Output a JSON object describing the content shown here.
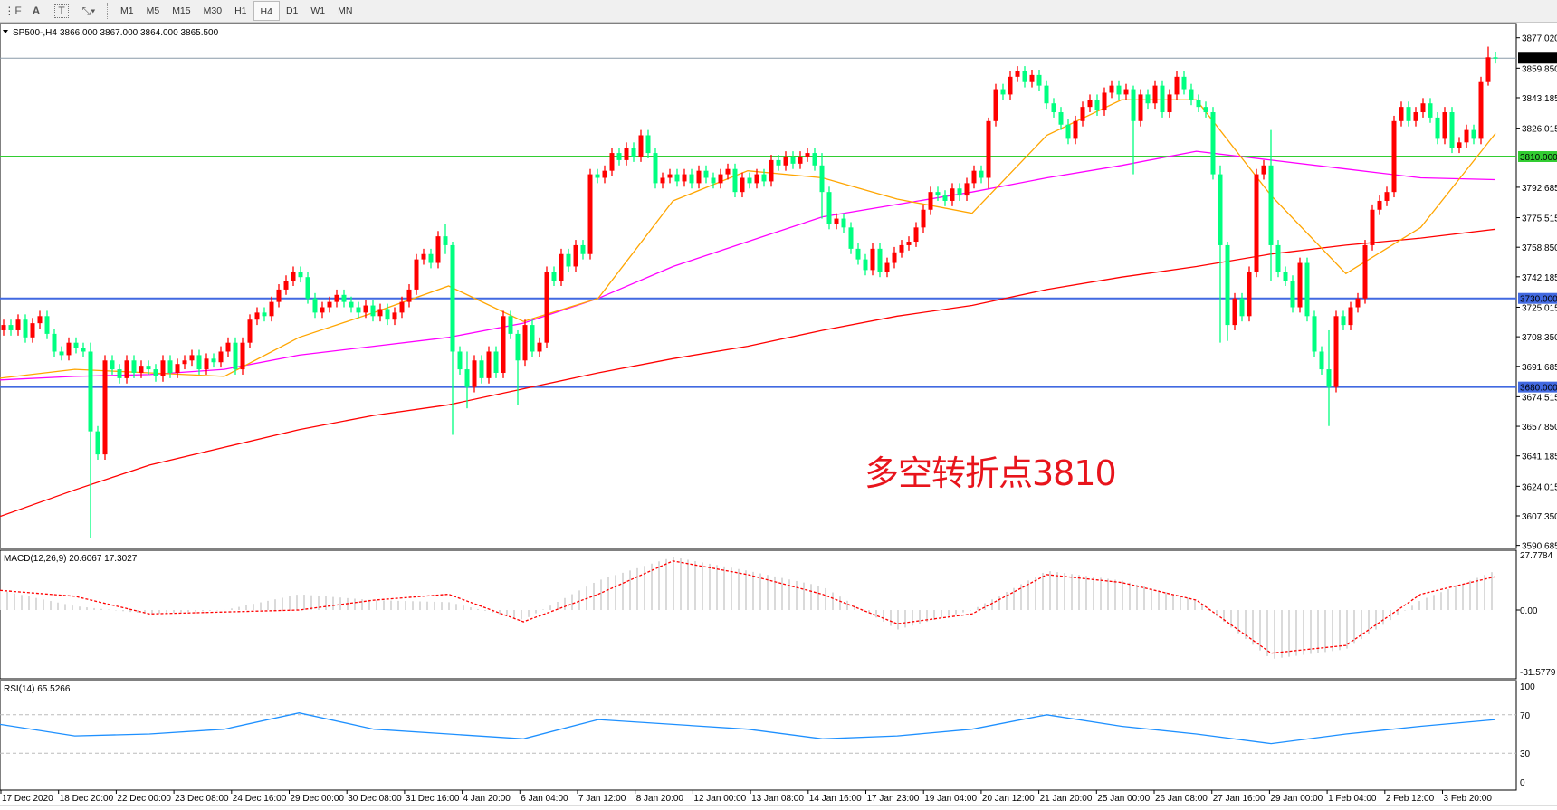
{
  "toolbar": {
    "icons": [
      "grid-font-icon",
      "text-A-icon",
      "text-label-icon",
      "line-tools-icon"
    ],
    "timeframes": [
      "M1",
      "M5",
      "M15",
      "M30",
      "H1",
      "H4",
      "D1",
      "W1",
      "MN"
    ],
    "active_timeframe": "H4"
  },
  "header": {
    "symbol_label": "SP500-,H4",
    "ohlc_label": "3866.000 3867.000 3864.000 3865.500"
  },
  "annotation": "多空转折点3810",
  "colors": {
    "bull": "#ff0000",
    "bear": "#00ff80",
    "ma_fast": "#ffa500",
    "ma_mid": "#ff00ff",
    "ma_slow": "#ff0000",
    "level_green": "#32cd32",
    "level_blue": "#4169e1",
    "macd_hist": "#c0c0c0",
    "macd_signal": "#ff0000",
    "rsi": "#1e90ff"
  },
  "price_axis": {
    "ticks": [
      "3877.020",
      "3859.850",
      "3843.185",
      "3826.015",
      "3792.685",
      "3775.515",
      "3758.850",
      "3742.185",
      "3725.015",
      "3708.350",
      "3691.685",
      "3674.515",
      "3657.850",
      "3641.185",
      "3624.015",
      "3607.350",
      "3590.685"
    ],
    "current_price": "3865.500",
    "levels": [
      {
        "value": "3810.000",
        "color": "green"
      },
      {
        "value": "3730.000",
        "color": "blue"
      },
      {
        "value": "3680.000",
        "color": "blue"
      }
    ]
  },
  "time_axis": [
    "17 Dec 2020",
    "18 Dec 20:00",
    "22 Dec 00:00",
    "23 Dec 08:00",
    "24 Dec 16:00",
    "29 Dec 00:00",
    "30 Dec 08:00",
    "31 Dec 16:00",
    "4 Jan 20:00",
    "6 Jan 04:00",
    "7 Jan 12:00",
    "8 Jan 20:00",
    "12 Jan 00:00",
    "13 Jan 08:00",
    "14 Jan 16:00",
    "17 Jan 23:00",
    "19 Jan 04:00",
    "20 Jan 12:00",
    "21 Jan 20:00",
    "25 Jan 00:00",
    "26 Jan 08:00",
    "27 Jan 16:00",
    "29 Jan 00:00",
    "1 Feb 04:00",
    "2 Feb 12:00",
    "3 Feb 20:00"
  ],
  "macd": {
    "label": "MACD(12,26,9) 20.6067 17.3027",
    "axis": [
      "27.7784",
      "0.00",
      "-31.5779"
    ]
  },
  "rsi": {
    "label": "RSI(14) 65.5266",
    "axis": [
      "100",
      "70",
      "30",
      "0"
    ]
  },
  "chart_data": {
    "type": "candlestick",
    "ylim": [
      3590.685,
      3877.02
    ],
    "close": [
      3715,
      3712,
      3718,
      3708,
      3716,
      3720,
      3710,
      3700,
      3698,
      3705,
      3702,
      3700,
      3655,
      3642,
      3695,
      3690,
      3685,
      3695,
      3688,
      3692,
      3690,
      3686,
      3695,
      3688,
      3693,
      3695,
      3698,
      3690,
      3696,
      3694,
      3700,
      3705,
      3690,
      3705,
      3718,
      3722,
      3720,
      3728,
      3735,
      3740,
      3745,
      3742,
      3730,
      3722,
      3725,
      3728,
      3732,
      3728,
      3725,
      3722,
      3726,
      3720,
      3724,
      3718,
      3722,
      3728,
      3735,
      3752,
      3755,
      3750,
      3765,
      3760,
      3700,
      3690,
      3680,
      3695,
      3685,
      3700,
      3688,
      3720,
      3710,
      3695,
      3715,
      3700,
      3705,
      3745,
      3740,
      3755,
      3748,
      3760,
      3755,
      3800,
      3798,
      3802,
      3812,
      3808,
      3815,
      3810,
      3822,
      3812,
      3795,
      3798,
      3800,
      3796,
      3800,
      3795,
      3802,
      3798,
      3795,
      3800,
      3803,
      3790,
      3798,
      3795,
      3800,
      3796,
      3808,
      3805,
      3810,
      3806,
      3810,
      3812,
      3805,
      3790,
      3772,
      3775,
      3770,
      3758,
      3752,
      3746,
      3758,
      3745,
      3750,
      3756,
      3760,
      3762,
      3770,
      3780,
      3790,
      3788,
      3785,
      3792,
      3788,
      3795,
      3802,
      3798,
      3830,
      3848,
      3845,
      3855,
      3858,
      3852,
      3856,
      3850,
      3840,
      3835,
      3828,
      3820,
      3830,
      3838,
      3842,
      3836,
      3846,
      3850,
      3845,
      3848,
      3830,
      3845,
      3840,
      3850,
      3835,
      3845,
      3855,
      3848,
      3842,
      3838,
      3835,
      3800,
      3760,
      3715,
      3730,
      3720,
      3745,
      3800,
      3805,
      3760,
      3745,
      3740,
      3725,
      3750,
      3720,
      3700,
      3690,
      3680,
      3720,
      3715,
      3725,
      3730,
      3760,
      3780,
      3785,
      3790,
      3830,
      3838,
      3830,
      3835,
      3840,
      3832,
      3820,
      3835,
      3815,
      3818,
      3825,
      3820,
      3852,
      3866,
      3865.5
    ],
    "open_first": 3712,
    "wick_extremes": [
      [
        12,
        3705,
        3595
      ],
      [
        61,
        3772,
        3755
      ],
      [
        62,
        3762,
        3653
      ],
      [
        64,
        3700,
        3668
      ],
      [
        71,
        3712,
        3670
      ],
      [
        113,
        3812,
        3775
      ],
      [
        136,
        3832,
        3792
      ],
      [
        156,
        3850,
        3800
      ],
      [
        168,
        3805,
        3705
      ],
      [
        169,
        3762,
        3706
      ],
      [
        175,
        3825,
        3740
      ],
      [
        183,
        3712,
        3658
      ],
      [
        205,
        3872,
        3850
      ]
    ],
    "ma_slow": [
      3607,
      3622,
      3636,
      3646,
      3656,
      3664,
      3670,
      3679,
      3688,
      3696,
      3703,
      3712,
      3720,
      3726,
      3735,
      3742,
      3748,
      3755,
      3760,
      3764,
      3769
    ],
    "ma_mid": [
      3684,
      3686,
      3687,
      3690,
      3698,
      3703,
      3708,
      3716,
      3730,
      3748,
      3762,
      3776,
      3783,
      3790,
      3798,
      3805,
      3813,
      3808,
      3803,
      3798,
      3797
    ],
    "ma_fast": [
      3685,
      3690,
      3688,
      3686,
      3708,
      3722,
      3737,
      3717,
      3730,
      3785,
      3802,
      3798,
      3786,
      3778,
      3822,
      3842,
      3842,
      3788,
      3744,
      3770,
      3823
    ],
    "macd_hist": [
      10,
      2,
      -2,
      0,
      8,
      5,
      4,
      -5,
      15,
      27,
      20,
      12,
      -10,
      0,
      20,
      15,
      5,
      -25,
      -20,
      5,
      20
    ],
    "macd_signal": [
      10,
      7,
      -2,
      -1,
      0,
      5,
      8,
      -6,
      8,
      25,
      18,
      8,
      -7,
      -2,
      18,
      14,
      5,
      -22,
      -18,
      8,
      17
    ],
    "rsi": [
      60,
      48,
      50,
      55,
      72,
      55,
      50,
      45,
      65,
      60,
      55,
      45,
      48,
      55,
      70,
      58,
      50,
      40,
      50,
      58,
      65
    ]
  }
}
